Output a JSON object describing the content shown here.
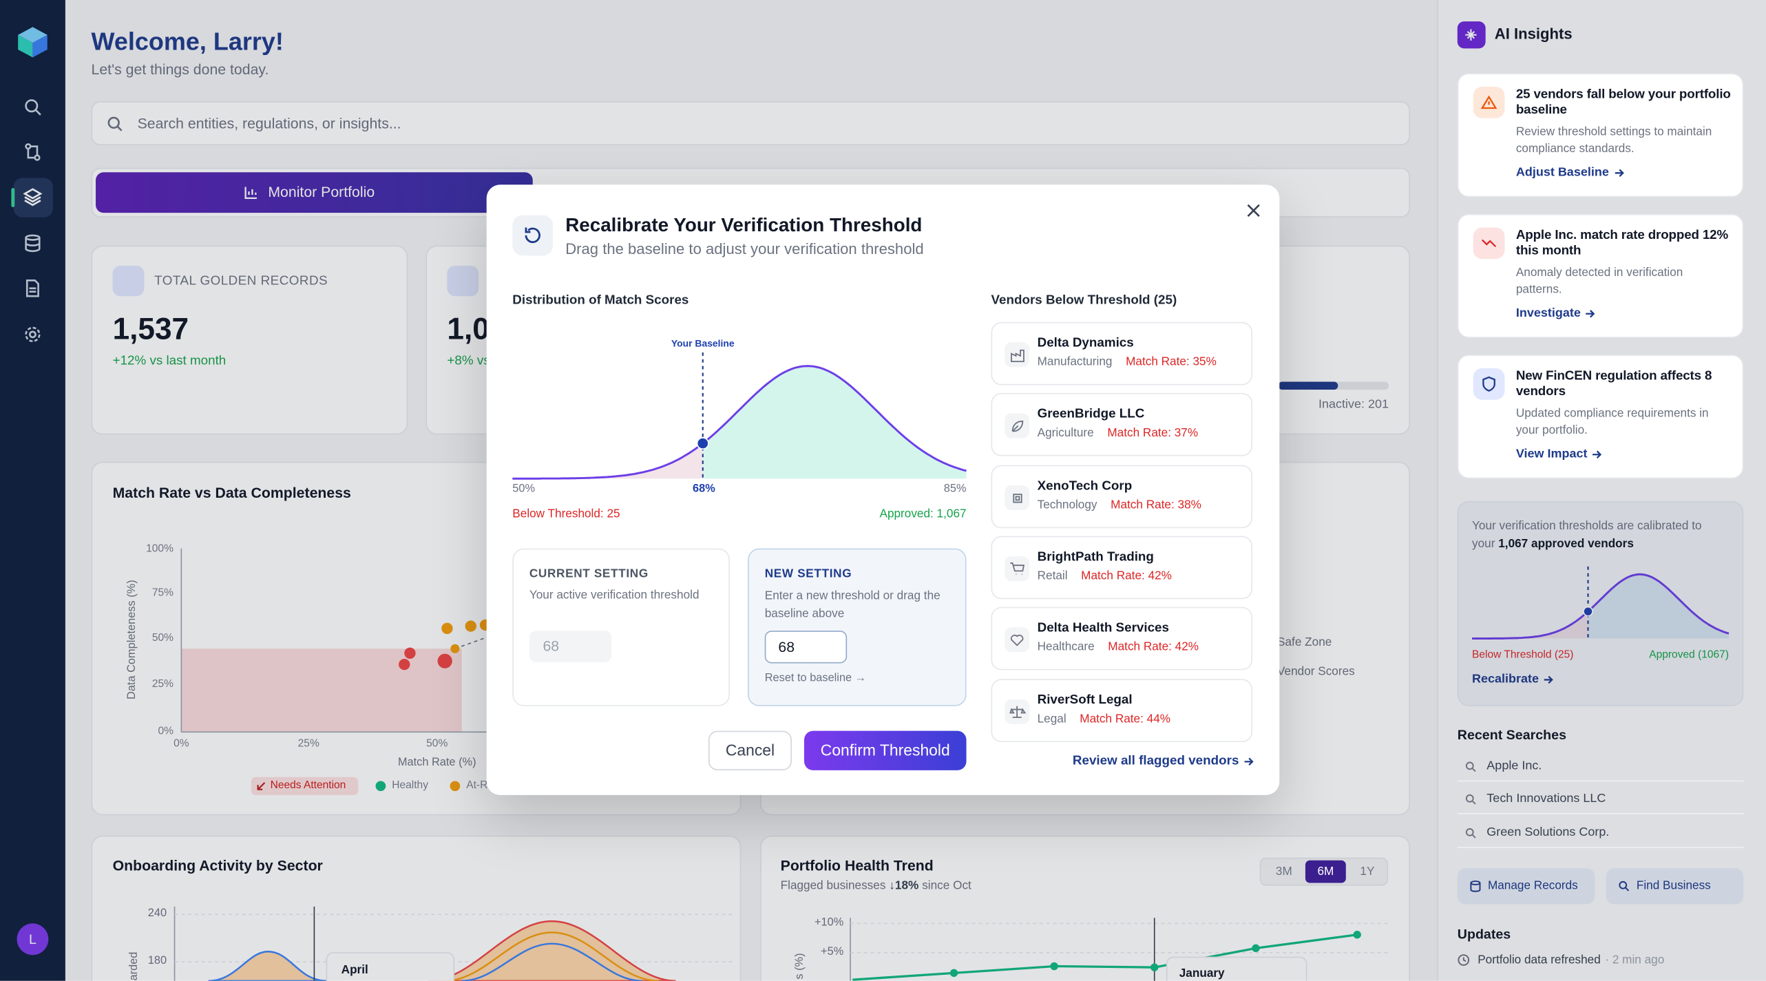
{
  "sidebar": {
    "avatar": "L"
  },
  "header": {
    "title": "Welcome, Larry!",
    "subtitle": "Let's get things done today."
  },
  "search": {
    "placeholder": "Search entities, regulations, or insights..."
  },
  "tabs": {
    "active": "Monitor Portfolio"
  },
  "stats": [
    {
      "label": "TOTAL GOLDEN RECORDS",
      "value": "1,537",
      "change": "+12% vs last month"
    },
    {
      "value": "1,0",
      "change": "+8% vs"
    },
    {
      "inactive": "Inactive: 201"
    }
  ],
  "match_chart": {
    "title": "Match Rate vs Data Completeness",
    "y_label": "Data Completeness (%)",
    "x_label": "Match Rate (%)",
    "yticks": [
      "100%",
      "75%",
      "50%",
      "25%",
      "0%"
    ],
    "xticks": [
      "0%",
      "25%",
      "50%"
    ],
    "legend": [
      "Needs Attention",
      "Healthy",
      "At-R"
    ]
  },
  "score_legend": [
    "Safe Zone",
    "Vendor Scores"
  ],
  "onboarding_chart": {
    "title": "Onboarding Activity by Sector",
    "yticks": [
      "240",
      "180"
    ],
    "y_label": "arded",
    "tooltip": "April"
  },
  "health_chart": {
    "title": "Portfolio Health Trend",
    "subtitle": {
      "prefix": "Flagged businesses",
      "highlight": "↓18%",
      "suffix": "since Oct"
    },
    "ranges": [
      "3M",
      "6M",
      "1Y"
    ],
    "active_range": "6M",
    "yticks": [
      "+10%",
      "+5%"
    ],
    "y_label": "s (%)",
    "tooltip": "January"
  },
  "insights": {
    "title": "AI Insights",
    "cards": [
      {
        "title": "25 vendors fall below your portfolio baseline",
        "description": "Review threshold settings to maintain compliance standards.",
        "action": "Adjust Baseline"
      },
      {
        "title": "Apple Inc. match rate dropped 12% this month",
        "description": "Anomaly detected in verification patterns.",
        "action": "Investigate"
      },
      {
        "title": "New FinCEN regulation affects 8 vendors",
        "description": "Updated compliance requirements in your portfolio.",
        "action": "View Impact"
      }
    ],
    "calibration": {
      "text": "Your verification thresholds are calibrated to your",
      "highlight": "1,067 approved vendors",
      "below": "Below Threshold (25)",
      "approved": "Approved (1067)",
      "action": "Recalibrate"
    }
  },
  "recent_searches": {
    "title": "Recent Searches",
    "items": [
      "Apple Inc.",
      "Tech Innovations LLC",
      "Green Solutions Corp."
    ]
  },
  "quick_actions": [
    "Manage Records",
    "Find Business"
  ],
  "updates": {
    "title": "Updates",
    "items": [
      {
        "text": "Portfolio data refreshed",
        "time": "· 2 min ago"
      }
    ]
  },
  "modal": {
    "title": "Recalibrate Your Verification Threshold",
    "subtitle": "Drag the baseline to adjust your verification threshold",
    "distribution": {
      "title": "Distribution of Match Scores",
      "baseline_label": "Your Baseline",
      "axis": [
        "50%",
        "68%",
        "85%"
      ],
      "below": "Below Threshold: 25",
      "approved": "Approved: 1,067"
    },
    "current": {
      "label": "CURRENT SETTING",
      "description": "Your active verification threshold",
      "value": "68"
    },
    "new": {
      "label": "NEW SETTING",
      "description": "Enter a new threshold or drag the baseline above",
      "value": "68",
      "reset": "Reset to baseline →"
    },
    "buttons": {
      "cancel": "Cancel",
      "confirm": "Confirm Threshold"
    },
    "vendors": {
      "title": "Vendors Below Threshold (25)",
      "items": [
        {
          "name": "Delta Dynamics",
          "sector": "Manufacturing",
          "match_rate": "Match Rate: 35%"
        },
        {
          "name": "GreenBridge LLC",
          "sector": "Agriculture",
          "match_rate": "Match Rate: 37%"
        },
        {
          "name": "XenoTech Corp",
          "sector": "Technology",
          "match_rate": "Match Rate: 38%"
        },
        {
          "name": "BrightPath Trading",
          "sector": "Retail",
          "match_rate": "Match Rate: 42%"
        },
        {
          "name": "Delta Health Services",
          "sector": "Healthcare",
          "match_rate": "Match Rate: 42%"
        },
        {
          "name": "RiverSoft Legal",
          "sector": "Legal",
          "match_rate": "Match Rate: 44%"
        }
      ],
      "review": "Review all flagged vendors"
    }
  }
}
